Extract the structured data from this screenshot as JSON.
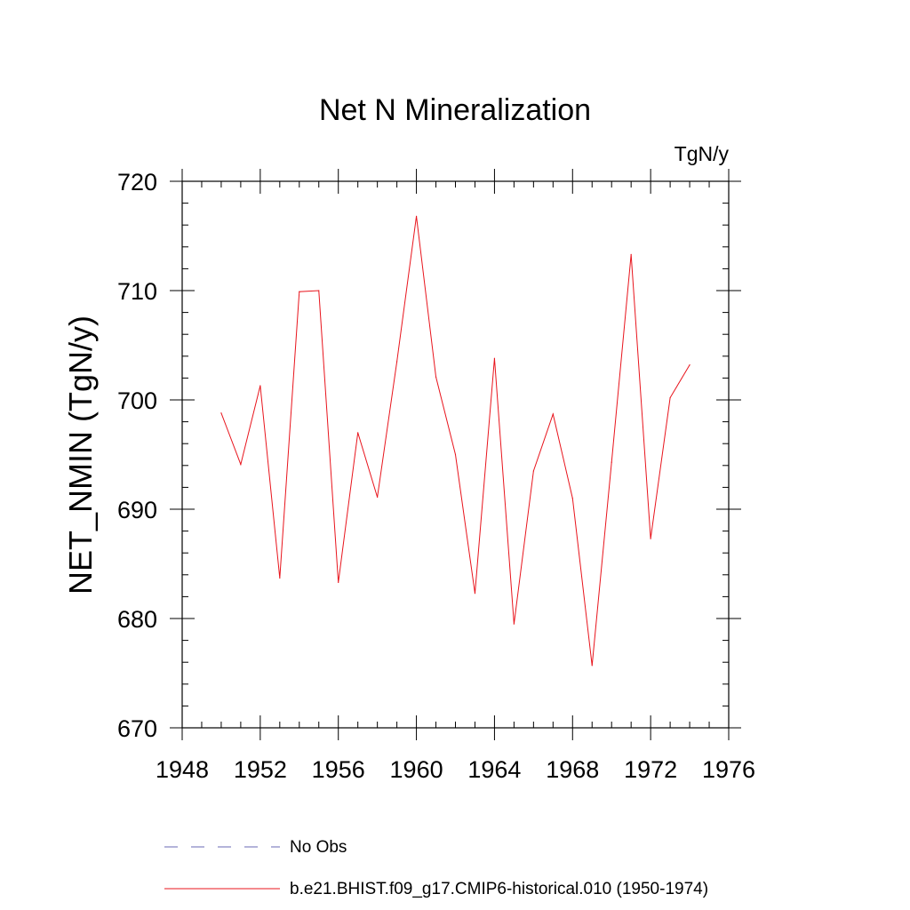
{
  "chart_data": {
    "type": "line",
    "title": "Net N Mineralization",
    "units": "TgN/y",
    "xlabel": "",
    "ylabel": "NET_NMIN  (TgN/y)",
    "xlim": [
      1948,
      1976
    ],
    "ylim": [
      670,
      720
    ],
    "xticks": [
      1948,
      1952,
      1956,
      1960,
      1964,
      1968,
      1972,
      1976
    ],
    "yticks": [
      670,
      680,
      690,
      700,
      710,
      720
    ],
    "x_minor_step": 1,
    "y_minor_step": 2,
    "series": [
      {
        "name": "b.e21.BHIST.f09_g17.CMIP6-historical.010 (1950-1974)",
        "color": "#e8141c",
        "style": "solid",
        "x": [
          1950,
          1951,
          1952,
          1953,
          1954,
          1955,
          1956,
          1957,
          1958,
          1959,
          1960,
          1961,
          1962,
          1963,
          1964,
          1965,
          1966,
          1967,
          1968,
          1969,
          1970,
          1971,
          1972,
          1973,
          1974
        ],
        "values": [
          698.8,
          694.1,
          701.3,
          683.7,
          709.9,
          710.0,
          683.3,
          697.0,
          691.1,
          703.5,
          716.8,
          702.1,
          695.0,
          682.3,
          703.8,
          679.5,
          693.5,
          698.7,
          691.0,
          675.7,
          694.3,
          713.3,
          687.3,
          700.2,
          703.2
        ]
      }
    ],
    "legend": [
      {
        "label": "No Obs",
        "color": "#6a6ab4",
        "style": "dashed"
      },
      {
        "label": "b.e21.BHIST.f09_g17.CMIP6-historical.010 (1950-1974)",
        "color": "#e8141c",
        "style": "solid"
      }
    ],
    "legend_position": "bottom"
  }
}
